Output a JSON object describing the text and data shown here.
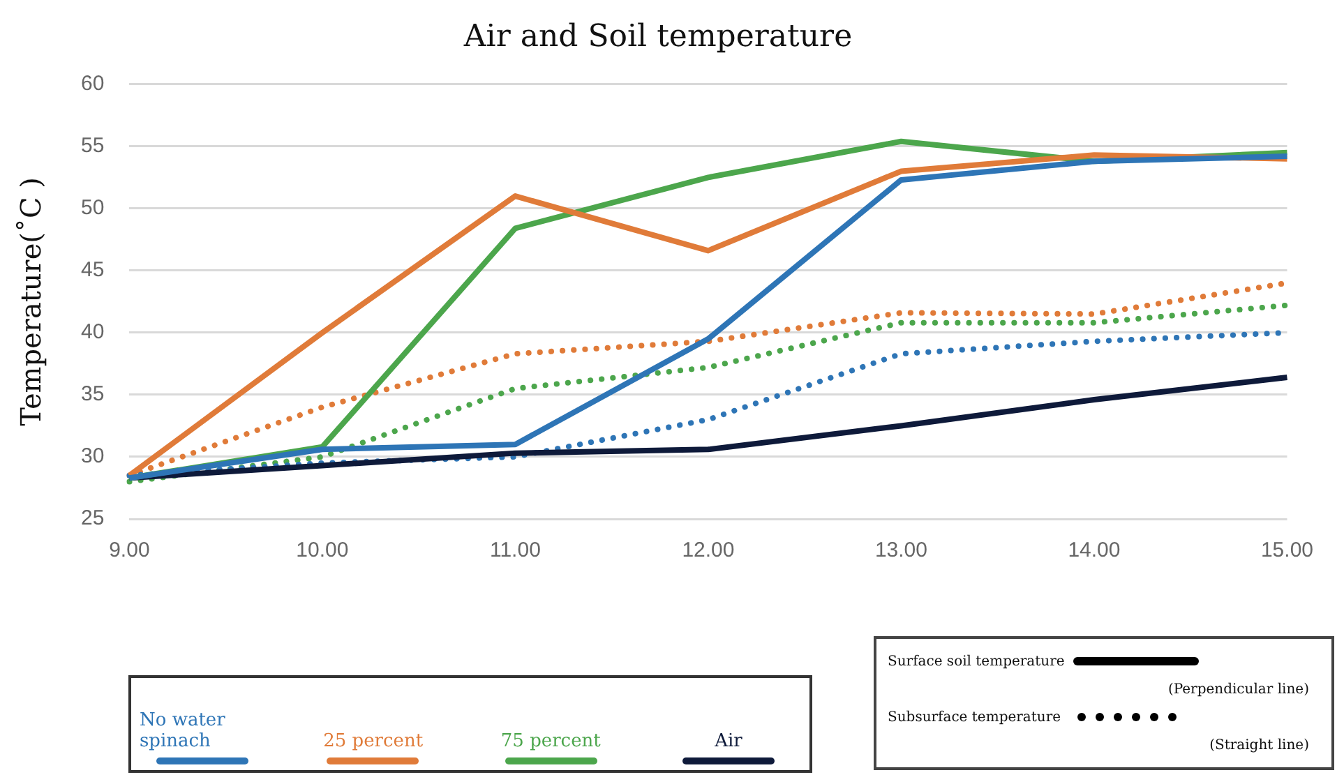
{
  "chart_data": {
    "type": "line",
    "title": "Air and Soil temperature",
    "ylabel": "Temperature(˚C )",
    "categories": [
      "9.00",
      "10.00",
      "11.00",
      "12.00",
      "13.00",
      "14.00",
      "15.00"
    ],
    "ylim": [
      25,
      60
    ],
    "yticks": [
      25,
      30,
      35,
      40,
      45,
      50,
      55,
      60
    ],
    "grid": "y",
    "legend": "bottom",
    "marker": "none",
    "series": [
      {
        "name": "No water spinach",
        "color": "#2e75b6",
        "line_style": "solid",
        "values": [
          28.3,
          30.6,
          31,
          39.5,
          52.3,
          53.8,
          54.2
        ]
      },
      {
        "name": "25 percent",
        "color": "#e07b39",
        "line_style": "solid",
        "values": [
          28.5,
          40,
          51,
          46.6,
          53,
          54.3,
          54
        ]
      },
      {
        "name": "75 percent",
        "color": "#4ca64c",
        "line_style": "solid",
        "values": [
          28.3,
          30.8,
          48.4,
          52.5,
          55.4,
          53.8,
          54.5
        ]
      },
      {
        "name": "Air",
        "color": "#0e1a3a",
        "line_style": "solid",
        "values": [
          28.3,
          29.3,
          30.3,
          30.6,
          32.5,
          34.6,
          36.4
        ]
      },
      {
        "color": "#2e75b6",
        "line_style": "dotted",
        "values": [
          28.5,
          29.5,
          30,
          33,
          38.3,
          39.3,
          40
        ]
      },
      {
        "color": "#e07b39",
        "line_style": "dotted",
        "values": [
          28.5,
          34,
          38.3,
          39.3,
          41.6,
          41.5,
          44
        ]
      },
      {
        "color": "#4ca64c",
        "line_style": "dotted",
        "values": [
          28,
          30,
          35.5,
          37.2,
          40.8,
          40.8,
          42.2
        ]
      }
    ],
    "annotations": [
      "Surface soil temperature",
      "(Perpendicular line)",
      "Subsurface temperature",
      "(Straight line)"
    ]
  }
}
